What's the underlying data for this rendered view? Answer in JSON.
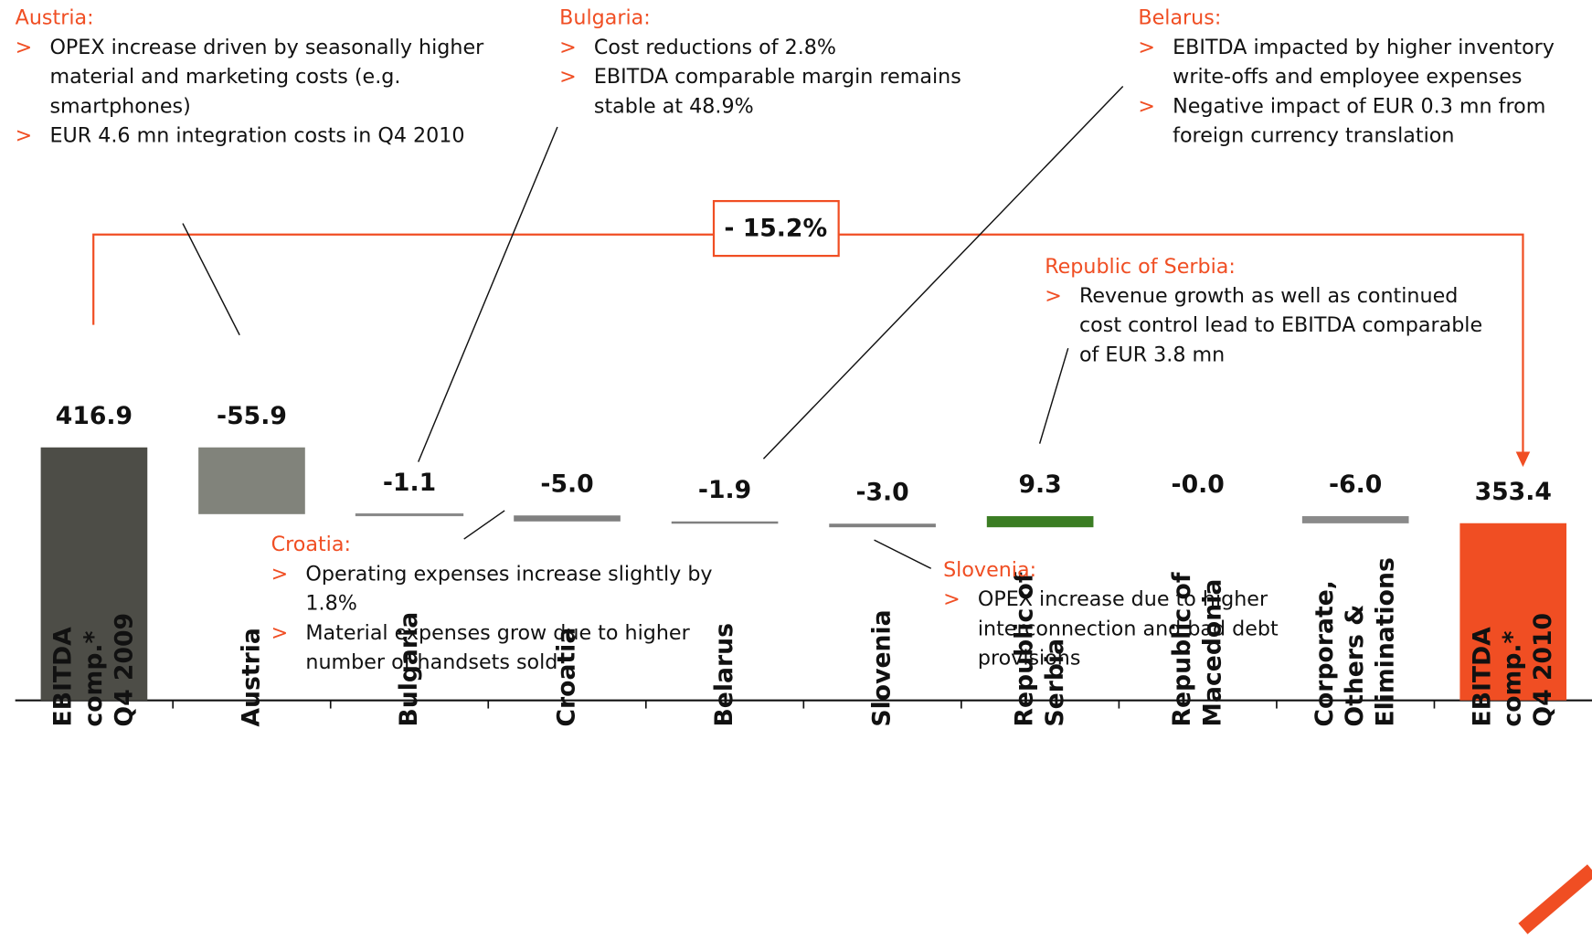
{
  "chart_data": {
    "type": "waterfall",
    "categories": [
      "EBITDA\ncomp.*\nQ4 2009",
      "Austria",
      "Bulgaria",
      "Croatia",
      "Belarus",
      "Slovenia",
      "Republic of\nSerbia",
      "Republic of\nMacedonia",
      "Corporate,\nOthers &\nEliminations",
      "EBITDA\ncomp.*\nQ4 2010"
    ],
    "values": [
      416.9,
      -55.9,
      -1.1,
      -5.0,
      -1.9,
      -3.0,
      9.3,
      -0.0,
      -6.0,
      353.4
    ],
    "value_labels": [
      "416.9",
      "-55.9",
      "-1.1",
      "-5.0",
      "-1.9",
      "-3.0",
      "9.3",
      "-0.0",
      "-6.0",
      "353.4"
    ],
    "totals": [
      0,
      9
    ],
    "colors": [
      "#4d4d47",
      "#81837b",
      "#8a8a8a",
      "#808080",
      "#808080",
      "#808080",
      "#3b7d23",
      "#3b9a2a",
      "#8a8a8a",
      "#f04e23"
    ],
    "ylim": [
      205,
      480
    ],
    "change_label": "- 15.2%",
    "annotations": [
      {
        "title": "Austria:",
        "bullets": [
          [
            "OPEX increase driven by seasonally higher",
            "material and marketing costs (e.g.",
            "smartphones)"
          ],
          [
            "EUR 4.6 mn integration costs in Q4 2010"
          ]
        ]
      },
      {
        "title": "Bulgaria:",
        "bullets": [
          [
            "Cost reductions of 2.8%"
          ],
          [
            "EBITDA comparable margin remains",
            "stable at 48.9%"
          ]
        ]
      },
      {
        "title": "Belarus:",
        "bullets": [
          [
            "EBITDA impacted by higher inventory",
            "write-offs and employee expenses"
          ],
          [
            "Negative impact of EUR 0.3 mn from",
            "foreign currency translation"
          ]
        ]
      },
      {
        "title": "Republic of Serbia:",
        "bullets": [
          [
            "Revenue growth as well as continued",
            "cost control lead to EBITDA comparable",
            "of EUR 3.8 mn"
          ]
        ]
      },
      {
        "title": "Croatia:",
        "bullets": [
          [
            "Operating expenses increase slightly by",
            "1.8%"
          ],
          [
            "Material expenses grow due to higher",
            "number of handsets sold"
          ]
        ]
      },
      {
        "title": "Slovenia:",
        "bullets": [
          [
            "OPEX increase due to higher",
            "interconnection and bad debt",
            "provisions"
          ]
        ]
      }
    ]
  }
}
